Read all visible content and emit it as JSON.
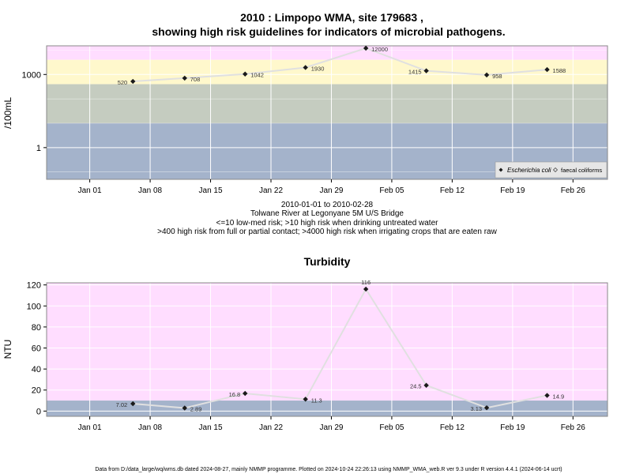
{
  "page": {
    "title_line1": "2010 : Limpopo WMA, site 179683 ,",
    "title_line2": "showing high risk guidelines for indicators of microbial pathogens.",
    "caption_lines": [
      "2010-01-01 to 2010-02-28",
      "Tolwane River at Legonyane 5M U/S Bridge",
      "<=10 low-med risk; >10 high risk when drinking untreated water",
      ">400 high risk from full or partial contact; >4000 high risk when irrigating crops that are eaten raw"
    ],
    "footer": "Data from D:/data_large/wq/wms.db dated 2024-08-27, mainly NMMP programme. Plotted on 2024-10-24 22:26:13 using NMMP_WMA_web.R ver 9.3 under R version 4.4.1 (2024-06-14 ucrt)"
  },
  "colors": {
    "band_pink": "#ffddff",
    "band_yellow": "#fff8cc",
    "band_sage": "#c5ccc0",
    "band_blue": "#a4b3cb",
    "line": "#e0e0e0",
    "marker": "#1a1a1a",
    "grid": "#ffffff"
  },
  "chart_data": [
    {
      "type": "line",
      "title": "",
      "ylabel": "/100mL",
      "y_scale": "log",
      "ylim": [
        0.05,
        15000
      ],
      "y_ticks": [
        1,
        1000
      ],
      "y_tick_labels": [
        "1",
        "1000"
      ],
      "xlim": [
        "2009-12-27",
        "2010-03-02"
      ],
      "x_ticks": [
        "2010-01-01",
        "2010-01-08",
        "2010-01-15",
        "2010-01-22",
        "2010-01-29",
        "2010-02-05",
        "2010-02-12",
        "2010-02-19",
        "2010-02-26"
      ],
      "x_tick_labels": [
        "Jan 01",
        "Jan 08",
        "Jan 15",
        "Jan 22",
        "Jan 29",
        "Feb 05",
        "Feb 12",
        "Feb 19",
        "Feb 26"
      ],
      "bands": [
        {
          "from": 4000,
          "to": 15000,
          "color": "#ffddff"
        },
        {
          "from": 400,
          "to": 4000,
          "color": "#fff8cc"
        },
        {
          "from": 10,
          "to": 400,
          "color": "#c5ccc0"
        },
        {
          "from": 0.05,
          "to": 10,
          "color": "#a4b3cb"
        }
      ],
      "series": [
        {
          "name": "Escherichia coli",
          "marker": "diamond",
          "x": [
            "2010-01-06",
            "2010-01-12",
            "2010-01-19",
            "2010-01-26",
            "2010-02-02",
            "2010-02-09",
            "2010-02-16",
            "2010-02-23"
          ],
          "y": [
            520,
            708,
            1042,
            1930,
            12000,
            1415,
            958,
            1588
          ],
          "labels": [
            "520",
            "708",
            "1042",
            "1930",
            "12000",
            "1415",
            "958",
            "1588"
          ]
        }
      ],
      "legend": {
        "position": "bottom-right",
        "items": [
          "Escherichia coli",
          "faecal coliforms"
        ]
      }
    },
    {
      "type": "line",
      "title": "Turbidity",
      "ylabel": "NTU",
      "y_scale": "linear",
      "ylim": [
        -5,
        122
      ],
      "y_ticks": [
        0,
        20,
        40,
        60,
        80,
        100,
        120
      ],
      "y_tick_labels": [
        "0",
        "20",
        "40",
        "60",
        "80",
        "100",
        "120"
      ],
      "xlim": [
        "2009-12-27",
        "2010-03-02"
      ],
      "x_ticks": [
        "2010-01-01",
        "2010-01-08",
        "2010-01-15",
        "2010-01-22",
        "2010-01-29",
        "2010-02-05",
        "2010-02-12",
        "2010-02-19",
        "2010-02-26"
      ],
      "x_tick_labels": [
        "Jan 01",
        "Jan 08",
        "Jan 15",
        "Jan 22",
        "Jan 29",
        "Feb 05",
        "Feb 12",
        "Feb 19",
        "Feb 26"
      ],
      "bands": [
        {
          "from": 10,
          "to": 122,
          "color": "#ffddff"
        },
        {
          "from": -5,
          "to": 10,
          "color": "#a4b3cb"
        }
      ],
      "series": [
        {
          "name": "Turbidity",
          "marker": "diamond",
          "x": [
            "2010-01-06",
            "2010-01-12",
            "2010-01-19",
            "2010-01-26",
            "2010-02-02",
            "2010-02-09",
            "2010-02-16",
            "2010-02-23"
          ],
          "y": [
            7.02,
            2.89,
            16.8,
            11.3,
            116,
            24.5,
            3.13,
            14.9
          ],
          "labels": [
            "7.02",
            "2.89",
            "16.8",
            "11.3",
            "116",
            "24.5",
            "3.13",
            "14.9"
          ]
        }
      ]
    }
  ]
}
